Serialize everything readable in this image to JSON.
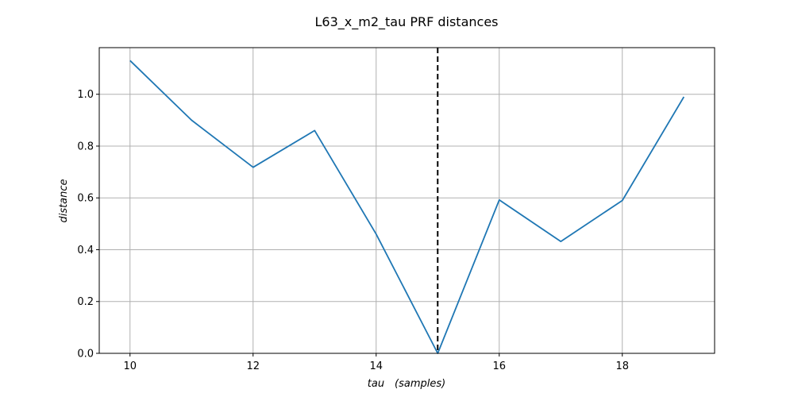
{
  "chart_data": {
    "type": "line",
    "title": "L63_x_m2_tau PRF distances",
    "xlabel": "tau (samples)",
    "ylabel": "distance",
    "xlim": [
      9.5,
      19.5
    ],
    "ylim": [
      0.0,
      1.18
    ],
    "xticks": [
      10,
      12,
      14,
      16,
      18
    ],
    "yticks": [
      0.0,
      0.2,
      0.4,
      0.6,
      0.8,
      1.0
    ],
    "grid": true,
    "series": [
      {
        "color": "#1f77b4",
        "x": [
          10,
          11,
          12,
          13,
          14,
          15,
          16,
          17,
          18,
          19
        ],
        "y": [
          1.13,
          0.9,
          0.718,
          0.86,
          0.46,
          0.0,
          0.592,
          0.432,
          0.59,
          0.99
        ]
      }
    ],
    "vline": {
      "x": 15,
      "color": "#000000",
      "style": "dashed"
    }
  }
}
